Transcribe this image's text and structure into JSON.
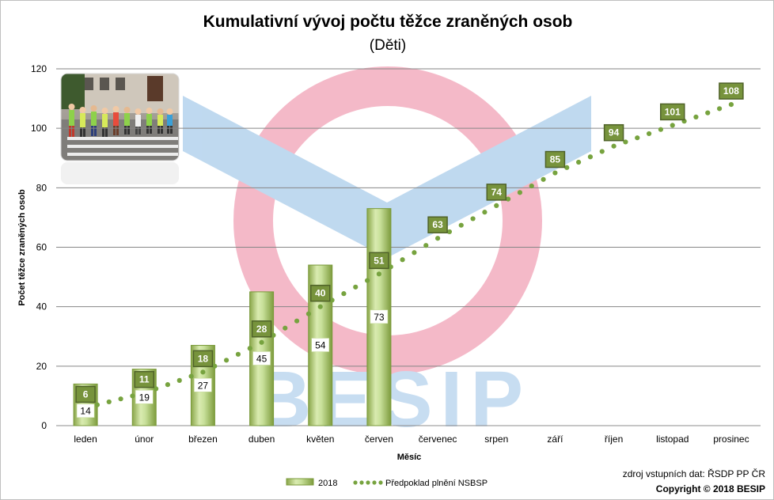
{
  "chart_data": {
    "type": "bar",
    "title": "Kumulativní vývoj  počtu těžce zraněných osob",
    "subtitle": "(Děti)",
    "xlabel": "Měsíc",
    "ylabel": "Počet těžce zraněných osob",
    "ylim": [
      0,
      120
    ],
    "yticks": [
      0,
      20,
      40,
      60,
      80,
      100,
      120
    ],
    "grid": true,
    "legend_position": "bottom",
    "categories": [
      "leden",
      "únor",
      "březen",
      "duben",
      "květen",
      "červen",
      "červenec",
      "srpen",
      "září",
      "říjen",
      "listopad",
      "prosinec"
    ],
    "series": [
      {
        "name": "2018",
        "type": "bar",
        "color": "#9bbb59",
        "values": [
          14,
          19,
          27,
          45,
          54,
          73,
          null,
          null,
          null,
          null,
          null,
          null
        ]
      },
      {
        "name": "Předpoklad plnění NSBSP",
        "type": "line-dotted",
        "color": "#77a33f",
        "values": [
          6,
          11,
          18,
          28,
          40,
          51,
          63,
          74,
          85,
          94,
          101,
          108
        ]
      }
    ]
  },
  "footer": {
    "source": "zdroj vstupních dat: ŘSDP PP ČR",
    "copyright": "Copyright © 2018  BESIP"
  },
  "watermark": {
    "text": "BESIP",
    "colors": {
      "circle": "#f4b6c6",
      "chevron": "#bcd7ef",
      "text": "#c5dcf1"
    }
  },
  "photo_icon": "children-crossing-photo"
}
